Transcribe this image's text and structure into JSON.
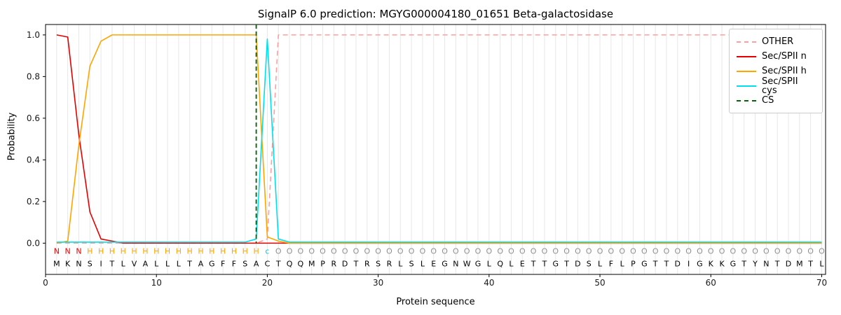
{
  "chart_data": {
    "type": "line",
    "title": "SignalP 6.0 prediction: MGYG000004180_01651 Beta-galactosidase",
    "xlabel": "Protein sequence",
    "ylabel": "Probability",
    "xlim": [
      0,
      70.35
    ],
    "ylim": [
      -0.15,
      1.05
    ],
    "x_ticks": [
      0,
      10,
      20,
      30,
      40,
      50,
      60,
      70
    ],
    "y_ticks": [
      0.0,
      0.2,
      0.4,
      0.6,
      0.8,
      1.0
    ],
    "grid": "vertical-gridline-per-residue",
    "grid_color": "#e7e7e7",
    "legend_position": "upper right",
    "x_start": 1,
    "series": [
      {
        "name": "OTHER",
        "color": "#ff9e9e",
        "style": "dashed",
        "values": [
          0,
          0,
          0,
          0,
          0,
          0,
          0,
          0,
          0,
          0,
          0,
          0,
          0,
          0,
          0,
          0,
          0,
          0,
          0,
          0.02,
          1,
          1,
          1,
          1,
          1,
          1,
          1,
          1,
          1,
          1,
          1,
          1,
          1,
          1,
          1,
          1,
          1,
          1,
          1,
          1,
          1,
          1,
          1,
          1,
          1,
          1,
          1,
          1,
          1,
          1,
          1,
          1,
          1,
          1,
          1,
          1,
          1,
          1,
          1,
          1,
          1,
          1,
          1,
          1,
          1,
          1,
          1,
          1,
          1,
          1
        ]
      },
      {
        "name": "Sec/SPII n",
        "color": "#e50000",
        "style": "solid",
        "values": [
          1,
          0.99,
          0.52,
          0.15,
          0.02,
          0.01,
          0,
          0,
          0,
          0,
          0,
          0,
          0,
          0,
          0,
          0,
          0,
          0,
          0,
          0,
          0,
          0,
          0,
          0,
          0,
          0,
          0,
          0,
          0,
          0,
          0,
          0,
          0,
          0,
          0,
          0,
          0,
          0,
          0,
          0,
          0,
          0,
          0,
          0,
          0,
          0,
          0,
          0,
          0,
          0,
          0,
          0,
          0,
          0,
          0,
          0,
          0,
          0,
          0,
          0,
          0,
          0,
          0,
          0,
          0,
          0,
          0,
          0,
          0,
          0
        ]
      },
      {
        "name": "Sec/SPII h",
        "color": "#ffa500",
        "style": "solid",
        "values": [
          0,
          0.01,
          0.47,
          0.85,
          0.97,
          1,
          1,
          1,
          1,
          1,
          1,
          1,
          1,
          1,
          1,
          1,
          1,
          1,
          1,
          0.03,
          0.01,
          0,
          0,
          0,
          0,
          0,
          0,
          0,
          0,
          0,
          0,
          0,
          0,
          0,
          0,
          0,
          0,
          0,
          0,
          0,
          0,
          0,
          0,
          0,
          0,
          0,
          0,
          0,
          0,
          0,
          0,
          0,
          0,
          0,
          0,
          0,
          0,
          0,
          0,
          0,
          0,
          0,
          0,
          0,
          0,
          0,
          0,
          0,
          0,
          0
        ]
      },
      {
        "name": "Sec/SPII cys",
        "color": "#00e0ea",
        "style": "solid",
        "values": [
          0.005,
          0.005,
          0.005,
          0.005,
          0.005,
          0.005,
          0.005,
          0.005,
          0.005,
          0.005,
          0.005,
          0.005,
          0.005,
          0.005,
          0.005,
          0.005,
          0.005,
          0.005,
          0.02,
          0.98,
          0.02,
          0.005,
          0.005,
          0.005,
          0.005,
          0.005,
          0.005,
          0.005,
          0.005,
          0.005,
          0.005,
          0.005,
          0.005,
          0.005,
          0.005,
          0.005,
          0.005,
          0.005,
          0.005,
          0.005,
          0.005,
          0.005,
          0.005,
          0.005,
          0.005,
          0.005,
          0.005,
          0.005,
          0.005,
          0.005,
          0.005,
          0.005,
          0.005,
          0.005,
          0.005,
          0.005,
          0.005,
          0.005,
          0.005,
          0.005,
          0.005,
          0.005,
          0.005,
          0.005,
          0.005,
          0.005,
          0.005,
          0.005,
          0.005,
          0.005
        ]
      }
    ],
    "markers": {
      "CS": {
        "x": 19,
        "color": "#006400",
        "style": "dashed"
      }
    },
    "legend": [
      {
        "label": "OTHER",
        "color": "#ff9e9e",
        "style": "dashed"
      },
      {
        "label": "Sec/SPII n",
        "color": "#e50000",
        "style": "solid"
      },
      {
        "label": "Sec/SPII h",
        "color": "#ffa500",
        "style": "solid"
      },
      {
        "label": "Sec/SPII cys",
        "color": "#00e0ea",
        "style": "solid"
      },
      {
        "label": "CS",
        "color": "#006400",
        "style": "dashed"
      }
    ],
    "annotation_row": "NNNHHHHHHHHHHHHHHHHcOOOOOOOOOOOOOOOOOOOOOOOOOOOOOOOOOOOOOOOOOOOOOOOOOO",
    "annotation_colors": {
      "N": "#e50000",
      "H": "#ffa500",
      "c": "#00c8d4",
      "O": "#8f8f8f"
    },
    "sequence": "MKNSITLVALLLTAGFFSACTQQMPRDTRSRLSLEGNWGLQLETTGTDSLFLPGTTDIGKKGTYNTDMTL",
    "sequence_color": "#000000"
  }
}
